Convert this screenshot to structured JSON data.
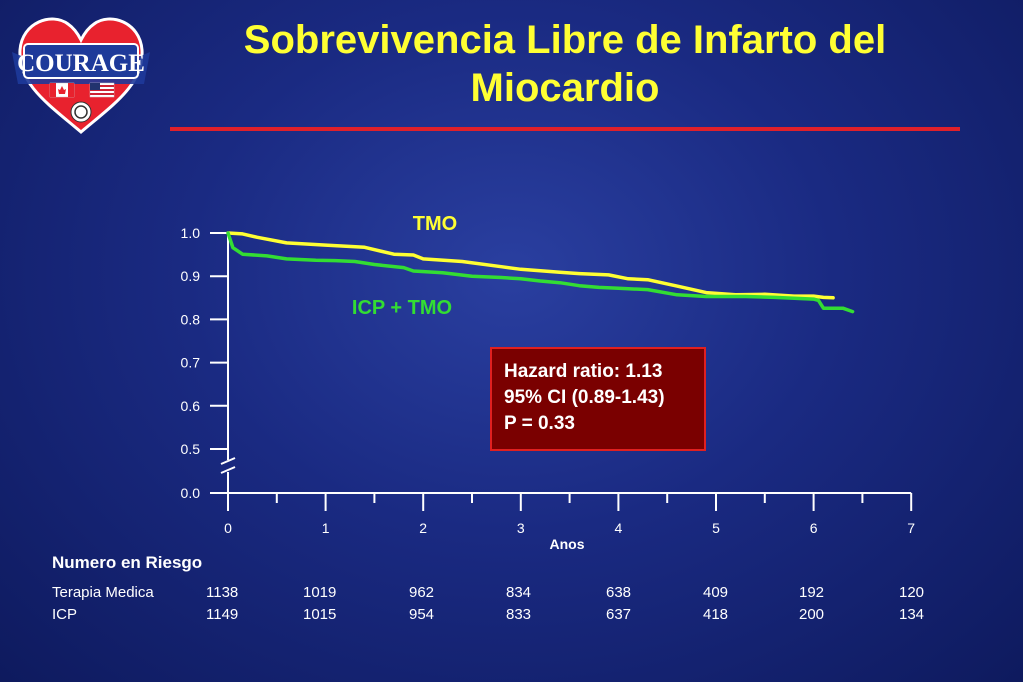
{
  "logo": {
    "text": "COURAGE",
    "red": "#e8222e",
    "blue": "#1e3a9a"
  },
  "title": {
    "line1": "Sobrevivencia Libre de Infarto del",
    "line2": "Miocardio"
  },
  "chart_data": {
    "type": "line",
    "title": "",
    "xlabel": "Anos",
    "ylabel": "",
    "xlim": [
      0,
      7
    ],
    "x_ticks": [
      "0",
      "1",
      "2",
      "3",
      "4",
      "5",
      "6",
      "7"
    ],
    "y_ticks": [
      "1.0",
      "0.9",
      "0.8",
      "0.7",
      "0.6",
      "0.5",
      "0.0"
    ],
    "y_axis_break": "0.0 - 0.5",
    "grid": false,
    "series": [
      {
        "name": "TMO",
        "color": "#ffff33",
        "x": [
          0,
          0.15,
          0.3,
          0.6,
          1.0,
          1.4,
          1.7,
          1.9,
          2.0,
          2.4,
          2.8,
          3.0,
          3.4,
          3.6,
          3.9,
          4.1,
          4.3,
          4.6,
          4.9,
          5.2,
          5.5,
          5.8,
          6.0,
          6.1,
          6.2
        ],
        "y": [
          1.0,
          0.998,
          0.99,
          0.977,
          0.972,
          0.967,
          0.951,
          0.949,
          0.94,
          0.934,
          0.922,
          0.916,
          0.909,
          0.906,
          0.903,
          0.894,
          0.892,
          0.877,
          0.862,
          0.857,
          0.858,
          0.854,
          0.854,
          0.851,
          0.85
        ]
      },
      {
        "name": "ICP + TMO",
        "color": "#33dd33",
        "x": [
          0,
          0.05,
          0.15,
          0.4,
          0.6,
          0.9,
          1.1,
          1.3,
          1.5,
          1.8,
          1.9,
          2.2,
          2.5,
          2.8,
          3.0,
          3.2,
          3.4,
          3.6,
          3.8,
          4.0,
          4.3,
          4.6,
          4.9,
          5.3,
          5.6,
          5.8,
          6.0,
          6.05,
          6.1,
          6.3,
          6.4
        ],
        "y": [
          1.0,
          0.966,
          0.951,
          0.947,
          0.94,
          0.937,
          0.936,
          0.934,
          0.927,
          0.92,
          0.912,
          0.908,
          0.9,
          0.897,
          0.894,
          0.889,
          0.885,
          0.878,
          0.874,
          0.872,
          0.869,
          0.857,
          0.853,
          0.853,
          0.851,
          0.849,
          0.847,
          0.844,
          0.826,
          0.826,
          0.818
        ]
      }
    ]
  },
  "annotations": {
    "tmo_label": "TMO",
    "icp_label": "ICP + TMO",
    "hazard": {
      "line1": "Hazard ratio: 1.13",
      "line2": "95% CI (0.89-1.43)",
      "line3": "P = 0.33"
    }
  },
  "risk_table": {
    "title": "Numero en Riesgo",
    "rows": [
      {
        "label": "Terapia Medica",
        "values": [
          "1138",
          "1019",
          "962",
          "834",
          "638",
          "409",
          "192",
          "120"
        ]
      },
      {
        "label": "ICP",
        "values": [
          "1149",
          "1015",
          "954",
          "833",
          "637",
          "418",
          "200",
          "134"
        ]
      }
    ]
  }
}
